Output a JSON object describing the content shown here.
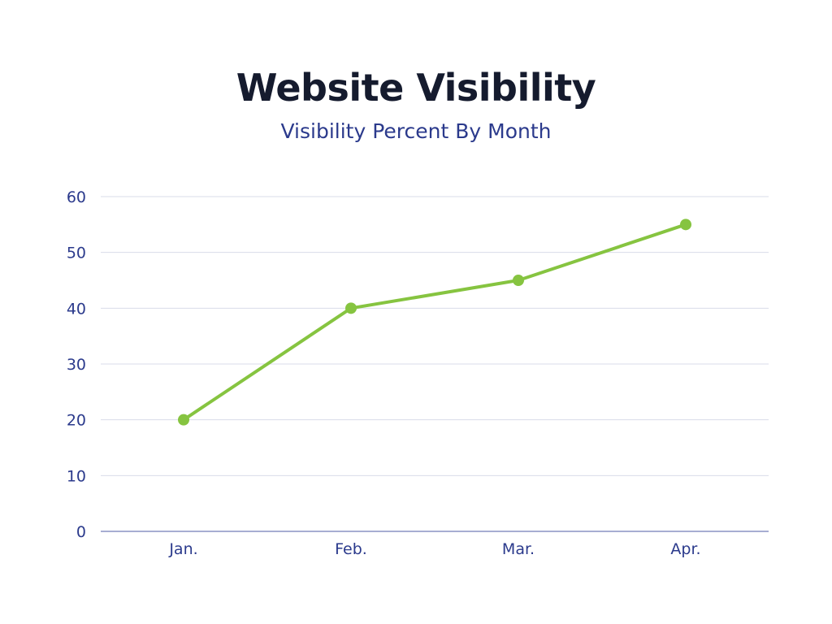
{
  "chart_data": {
    "type": "line",
    "title": "Website Visibility",
    "subtitle": "Visibility Percent By Month",
    "xlabel": "",
    "ylabel": "",
    "categories": [
      "Jan.",
      "Feb.",
      "Mar.",
      "Apr."
    ],
    "series": [
      {
        "values": [
          20,
          40,
          45,
          55
        ]
      }
    ],
    "ylim": [
      0,
      60
    ],
    "yticks": [
      0,
      10,
      20,
      30,
      40,
      50,
      60
    ],
    "grid": true,
    "legend": "none",
    "colors": {
      "line": "#86c440",
      "grid": "#d9dcea",
      "axis": "#8a93c4",
      "tick_text": "#2b3a8c",
      "title": "#151b2e",
      "subtitle": "#2b3a8c"
    }
  }
}
